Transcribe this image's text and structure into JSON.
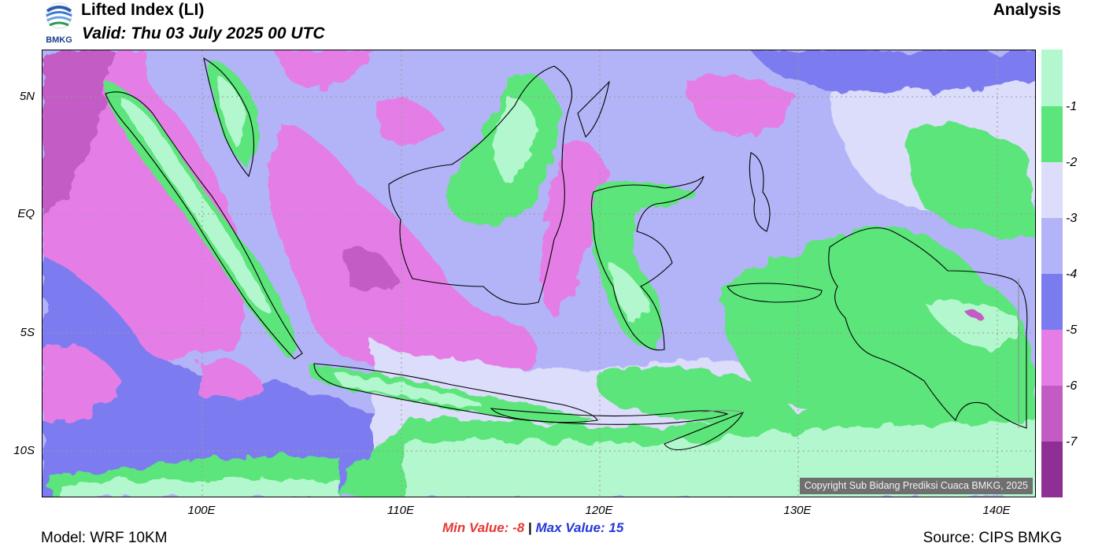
{
  "header": {
    "title": "Lifted Index (LI)",
    "valid": "Valid: Thu 03 July 2025 00 UTC",
    "mode": "Analysis",
    "logo_text": "BMKG"
  },
  "map": {
    "copyright": "Copyright Sub Bidang Prediksi Cuaca BMKG, 2025",
    "lat_labels": [
      "5N",
      "EQ",
      "5S",
      "10S"
    ],
    "lon_labels": [
      "100E",
      "110E",
      "120E",
      "130E",
      "140E"
    ]
  },
  "colorbar": {
    "labels": [
      "-1",
      "-2",
      "-3",
      "-4",
      "-5",
      "-6",
      "-7"
    ],
    "colors": [
      "#b3f7ce",
      "#5ce57a",
      "#dcdcfb",
      "#b3b3f8",
      "#7b7bf0",
      "#e47ee6",
      "#c35bc5",
      "#8e2f95"
    ]
  },
  "footer": {
    "min_label": "Min Value:",
    "min_value": "-8",
    "separator": "|",
    "max_label": "Max Value:",
    "max_value": "15",
    "model": "Model: WRF 10KM",
    "source": "Source: CIPS BMKG"
  }
}
